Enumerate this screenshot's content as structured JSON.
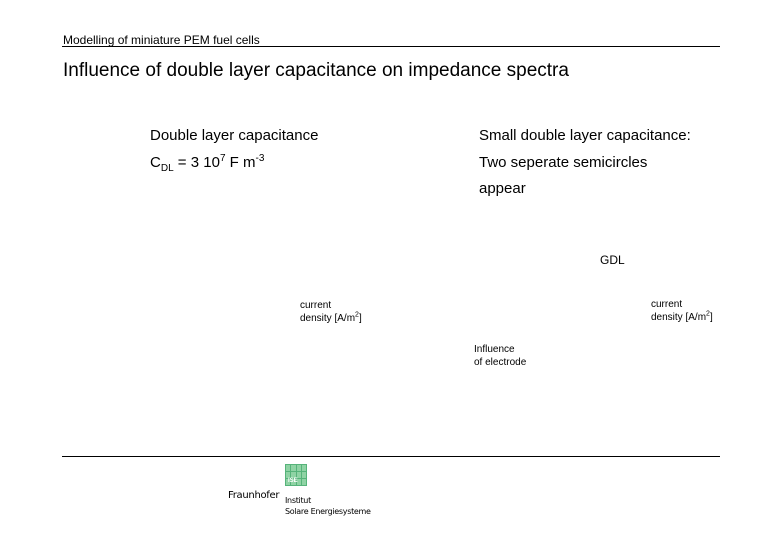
{
  "header": {
    "title": "Modelling of miniature PEM fuel cells"
  },
  "slide": {
    "title": "Influence of double layer capacitance on impedance spectra"
  },
  "left_block": {
    "heading": "Double layer capacitance",
    "cdl_symbol": "C",
    "cdl_sub": "DL",
    "cdl_value": " = 3 10",
    "cdl_exp": "7",
    "cdl_unit": " F m",
    "cdl_unit_exp": "-3"
  },
  "right_block": {
    "line1": "Small double layer capacitance:",
    "line2": "Two seperate semicircles",
    "line3": "appear"
  },
  "labels": {
    "gdl": "GDL",
    "left_axis_line1": "current",
    "left_axis_line2": "density [A/m",
    "left_axis_exp": "2",
    "left_axis_close": "]",
    "right_axis_line1": "current",
    "right_axis_line2": "density [A/m",
    "right_axis_exp": "2",
    "right_axis_close": "]",
    "influence_line1": "Influence",
    "influence_line2": "of electrode"
  },
  "logo": {
    "mark": "ISE",
    "brand": "Fraunhofer",
    "inst_line1": "Institut",
    "inst_line2": "Solare Energiesysteme"
  }
}
